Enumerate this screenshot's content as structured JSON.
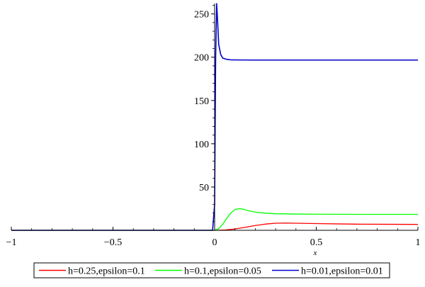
{
  "chart_data": {
    "type": "line",
    "title": "",
    "xlabel": "x",
    "ylabel": "",
    "xlim": [
      -1,
      1
    ],
    "ylim": [
      0,
      262
    ],
    "grid": false,
    "legend_placement": "bottom",
    "x_ticks": [
      {
        "value": -1,
        "label": "−1"
      },
      {
        "value": -0.5,
        "label": "−0.5"
      },
      {
        "value": 0,
        "label": "0"
      },
      {
        "value": 0.5,
        "label": "0.5"
      },
      {
        "value": 1,
        "label": "1"
      }
    ],
    "y_ticks": [
      {
        "value": 50,
        "label": "50"
      },
      {
        "value": 100,
        "label": "100"
      },
      {
        "value": 150,
        "label": "150"
      },
      {
        "value": 200,
        "label": "200"
      },
      {
        "value": 250,
        "label": "250"
      }
    ],
    "series": [
      {
        "name": "h=0.25,epsilon=0.1",
        "color": "#ff0000",
        "x": [
          -1,
          -0.5,
          0,
          0.05,
          0.1,
          0.15,
          0.2,
          0.25,
          0.3,
          0.35,
          0.4,
          0.5,
          0.6,
          0.7,
          0.8,
          0.9,
          1.0
        ],
        "y": [
          0,
          0,
          0,
          0.4,
          1.5,
          3.5,
          5.5,
          7.2,
          8.2,
          8.4,
          8.2,
          7.8,
          7.4,
          7.1,
          7.0,
          6.9,
          6.8
        ]
      },
      {
        "name": "h=0.1,epsilon=0.05",
        "color": "#00ff00",
        "x": [
          -1,
          -0.5,
          0,
          0.02,
          0.04,
          0.06,
          0.08,
          0.1,
          0.12,
          0.14,
          0.16,
          0.2,
          0.25,
          0.3,
          0.4,
          0.5,
          0.6,
          0.8,
          1.0
        ],
        "y": [
          0,
          0,
          0,
          2,
          7,
          14,
          20,
          24,
          25,
          24.5,
          23,
          21,
          19.8,
          19.2,
          18.8,
          18.6,
          18.5,
          18.4,
          18.4
        ]
      },
      {
        "name": "h=0.01,epsilon=0.01",
        "color": "#0000cc",
        "x": [
          -1,
          -0.5,
          -0.01,
          0,
          0.005,
          0.01,
          0.015,
          0.02,
          0.03,
          0.04,
          0.06,
          0.08,
          0.12,
          0.2,
          0.4,
          0.6,
          0.8,
          1.0
        ],
        "y": [
          0,
          0,
          0,
          30,
          200,
          262,
          240,
          215,
          203,
          199,
          197.5,
          197,
          196.8,
          196.7,
          196.7,
          196.7,
          196.7,
          196.7
        ]
      }
    ]
  }
}
